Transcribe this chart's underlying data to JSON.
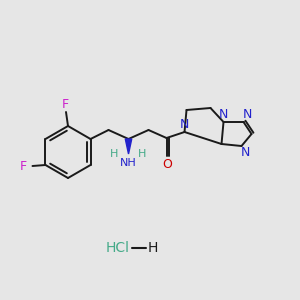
{
  "background_color": "#e6e6e6",
  "bond_color": "#1a1a1a",
  "F_color": "#cc22cc",
  "N_color": "#2222cc",
  "O_color": "#cc0000",
  "H_color": "#44aa88",
  "lw": 1.4,
  "figsize": [
    3.0,
    3.0
  ],
  "dpi": 100,
  "xlim": [
    0,
    300
  ],
  "ylim": [
    0,
    300
  ]
}
